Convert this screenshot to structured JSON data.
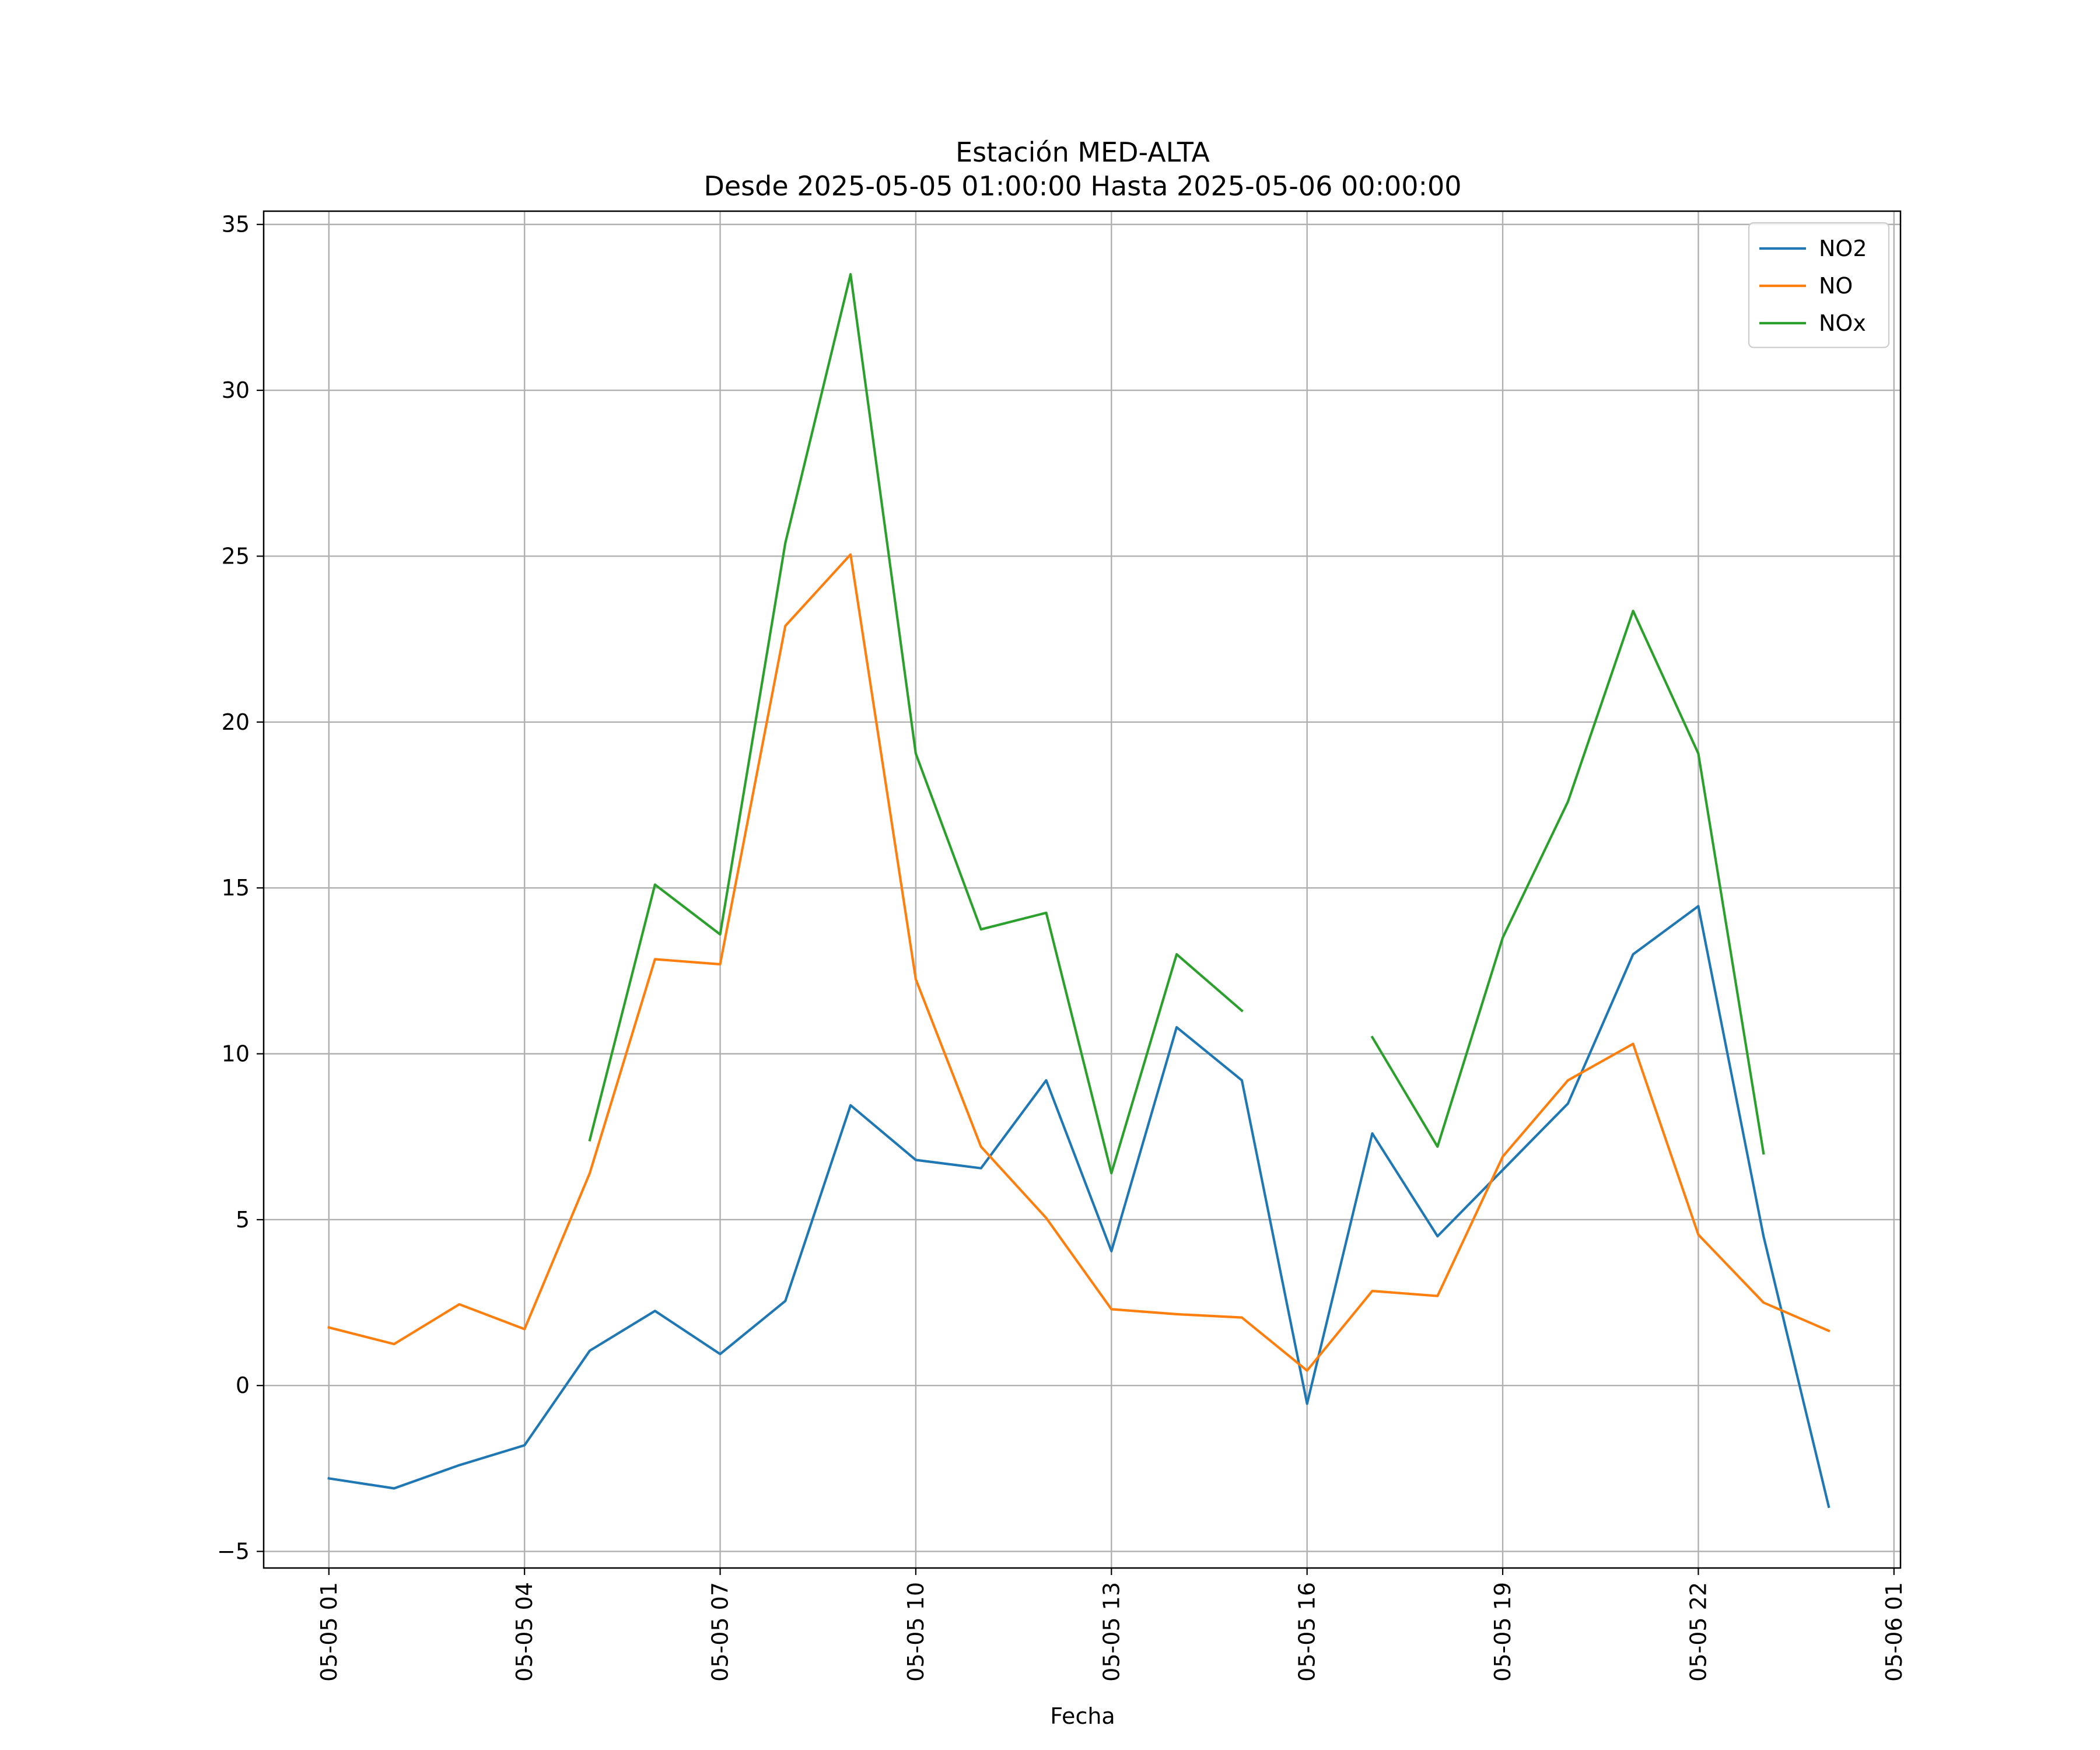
{
  "chart_data": {
    "type": "line",
    "title": "Estación MED-ALTA",
    "subtitle": "Desde 2025-05-05 01:00:00 Hasta 2025-05-06 00:00:00",
    "xlabel": "Fecha",
    "ylabel": "",
    "x": [
      "2025-05-05 01:00",
      "2025-05-05 02:00",
      "2025-05-05 03:00",
      "2025-05-05 04:00",
      "2025-05-05 05:00",
      "2025-05-05 06:00",
      "2025-05-05 07:00",
      "2025-05-05 08:00",
      "2025-05-05 09:00",
      "2025-05-05 10:00",
      "2025-05-05 11:00",
      "2025-05-05 12:00",
      "2025-05-05 13:00",
      "2025-05-05 14:00",
      "2025-05-05 15:00",
      "2025-05-05 16:00",
      "2025-05-05 17:00",
      "2025-05-05 18:00",
      "2025-05-05 19:00",
      "2025-05-05 20:00",
      "2025-05-05 21:00",
      "2025-05-05 22:00",
      "2025-05-05 23:00",
      "2025-05-06 00:00"
    ],
    "xlim": [
      "2025-05-05 00:00",
      "2025-05-06 01:06"
    ],
    "ylim": [
      -5.5,
      35.4
    ],
    "x_ticks": [
      {
        "x": "2025-05-05 01:00",
        "label": "05-05 01"
      },
      {
        "x": "2025-05-05 04:00",
        "label": "05-05 04"
      },
      {
        "x": "2025-05-05 07:00",
        "label": "05-05 07"
      },
      {
        "x": "2025-05-05 10:00",
        "label": "05-05 10"
      },
      {
        "x": "2025-05-05 13:00",
        "label": "05-05 13"
      },
      {
        "x": "2025-05-05 16:00",
        "label": "05-05 16"
      },
      {
        "x": "2025-05-05 19:00",
        "label": "05-05 19"
      },
      {
        "x": "2025-05-05 22:00",
        "label": "05-05 22"
      },
      {
        "x": "2025-05-06 01:00",
        "label": "05-06 01"
      }
    ],
    "y_ticks": [
      -5,
      0,
      5,
      10,
      15,
      20,
      25,
      30,
      35
    ],
    "y_tick_labels": [
      "−5",
      "0",
      "5",
      "10",
      "15",
      "20",
      "25",
      "30",
      "35"
    ],
    "grid": true,
    "legend_position": "top-right",
    "series": [
      {
        "name": "NO2",
        "color": "#1f77b4",
        "values": [
          -2.8,
          -3.1,
          -2.4,
          -1.8,
          1.05,
          2.25,
          0.95,
          2.55,
          8.45,
          6.8,
          6.55,
          9.2,
          4.05,
          10.8,
          9.2,
          -0.55,
          7.6,
          4.5,
          6.5,
          8.5,
          13.0,
          14.45,
          4.5,
          -3.65
        ]
      },
      {
        "name": "NO",
        "color": "#ff7f0e",
        "values": [
          1.75,
          1.25,
          2.45,
          1.7,
          6.4,
          12.85,
          12.7,
          22.9,
          25.05,
          12.25,
          7.2,
          5.05,
          2.3,
          2.15,
          2.05,
          0.45,
          2.85,
          2.7,
          6.9,
          9.2,
          10.3,
          4.55,
          2.5,
          1.65
        ]
      },
      {
        "name": "NOx",
        "color": "#2ca02c",
        "values": [
          null,
          null,
          null,
          null,
          7.4,
          15.1,
          13.6,
          25.4,
          33.5,
          19.05,
          13.75,
          14.25,
          6.4,
          13.0,
          11.3,
          null,
          10.5,
          7.2,
          13.5,
          17.6,
          23.35,
          19.05,
          7.0,
          null
        ]
      }
    ]
  }
}
